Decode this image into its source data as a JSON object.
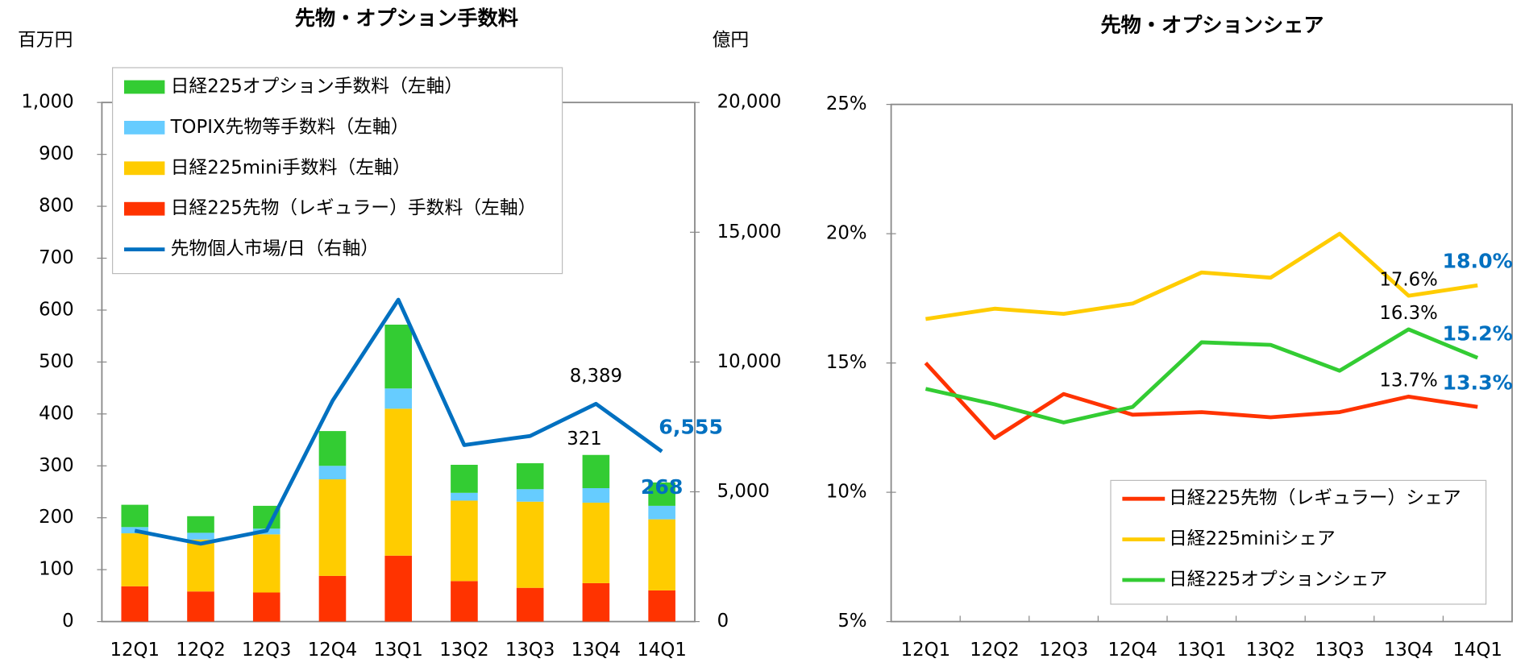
{
  "chart_data": [
    {
      "type": "bar",
      "stacked": true,
      "title": "先物・オプション手数料",
      "y_label": "百万円",
      "y2_label": "億円",
      "categories": [
        "12Q1",
        "12Q2",
        "12Q3",
        "12Q4",
        "13Q1",
        "13Q2",
        "13Q3",
        "13Q4",
        "14Q1"
      ],
      "series": [
        {
          "name": "日経225先物（レギュラー）手数料（左軸）",
          "color": "#ff3300",
          "values": [
            68,
            58,
            56,
            88,
            127,
            78,
            65,
            74,
            60
          ]
        },
        {
          "name": "日経225mini手数料（左軸）",
          "color": "#ffcc00",
          "values": [
            102,
            100,
            112,
            186,
            283,
            155,
            166,
            155,
            137
          ]
        },
        {
          "name": "TOPIX先物等手数料（左軸）",
          "color": "#66ccff",
          "values": [
            12,
            13,
            11,
            26,
            39,
            15,
            24,
            28,
            26
          ]
        },
        {
          "name": "日経225オプション手数料（左軸）",
          "color": "#33cc33",
          "values": [
            43,
            32,
            44,
            67,
            123,
            54,
            50,
            64,
            45
          ]
        },
        {
          "name": "先物個人市場/日（右軸）",
          "color": "#0070c0",
          "type": "line",
          "axis": "y2",
          "values": [
            3500,
            3000,
            3500,
            8500,
            12400,
            6800,
            7150,
            8389,
            6555
          ],
          "value_labels": [
            null,
            null,
            null,
            null,
            null,
            null,
            null,
            "8,389",
            "6,555"
          ]
        }
      ],
      "annotations": [
        "321",
        "268"
      ],
      "ylim": [
        0,
        1000
      ],
      "yticks": [
        0,
        100,
        200,
        300,
        400,
        500,
        600,
        700,
        800,
        900,
        {
          "value": 1000,
          "label": "1,000"
        }
      ],
      "y2lim": [
        0,
        20000
      ],
      "y2ticks": [
        0,
        {
          "value": 5000,
          "label": "5,000"
        },
        {
          "value": 10000,
          "label": "10,000"
        },
        {
          "value": 15000,
          "label": "15,000"
        },
        {
          "value": 20000,
          "label": "20,000"
        }
      ]
    },
    {
      "type": "line",
      "title": "先物・オプションシェア",
      "categories": [
        "12Q1",
        "12Q2",
        "12Q3",
        "12Q4",
        "13Q1",
        "13Q2",
        "13Q3",
        "13Q4",
        "14Q1"
      ],
      "series": [
        {
          "name": "日経225先物（レギュラー）シェア",
          "color": "#ff3300",
          "values": [
            15.0,
            12.1,
            13.8,
            13.0,
            13.1,
            12.9,
            13.1,
            13.7,
            13.3
          ],
          "value_labels": [
            null,
            null,
            null,
            null,
            null,
            null,
            null,
            "13.7%",
            "13.3%"
          ]
        },
        {
          "name": "日経225miniシェア",
          "color": "#ffcc00",
          "values": [
            16.7,
            17.1,
            16.9,
            17.3,
            18.5,
            18.3,
            20.0,
            17.6,
            18.0
          ],
          "value_labels": [
            null,
            null,
            null,
            null,
            null,
            null,
            null,
            "17.6%",
            "18.0%"
          ]
        },
        {
          "name": "日経225オプションシェア",
          "color": "#33cc33",
          "values": [
            14.0,
            13.4,
            12.7,
            13.3,
            15.8,
            15.7,
            14.7,
            16.3,
            15.2
          ],
          "value_labels": [
            null,
            null,
            null,
            null,
            null,
            null,
            null,
            "16.3%",
            "15.2%"
          ]
        }
      ],
      "ylim": [
        5,
        25
      ],
      "yticks": [
        {
          "value": 5,
          "label": "5%"
        },
        {
          "value": 10,
          "label": "10%"
        },
        {
          "value": 15,
          "label": "15%"
        },
        {
          "value": 20,
          "label": "20%"
        },
        {
          "value": 25,
          "label": "25%"
        }
      ]
    }
  ]
}
